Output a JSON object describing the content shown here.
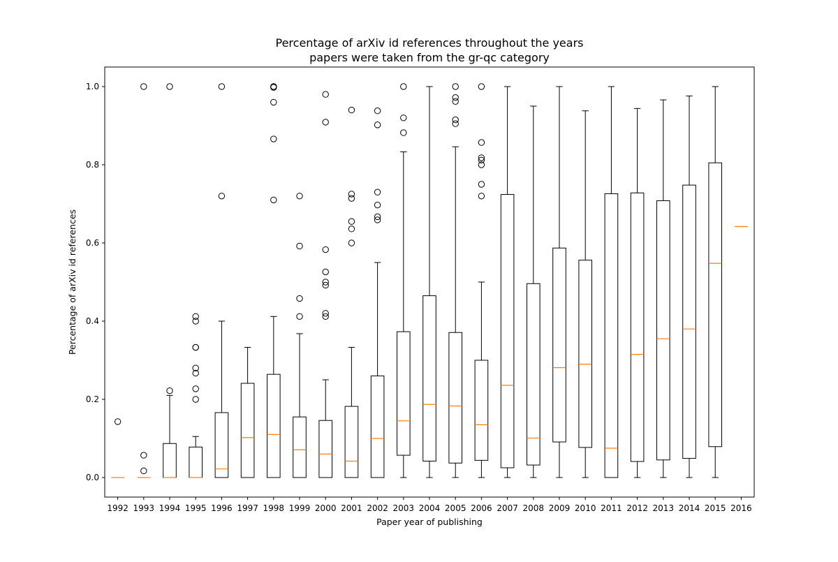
{
  "chart_data": {
    "type": "boxplot",
    "title": "Percentage of arXiv id references throughout the years",
    "subtitle": "papers were taken from the gr-qc category",
    "xlabel": "Paper year of publishing",
    "ylabel": "Percentage of arXiv id references",
    "ylim": [
      -0.05,
      1.05
    ],
    "yticks": [
      "0.0",
      "0.2",
      "0.4",
      "0.6",
      "0.8",
      "1.0"
    ],
    "grid": false,
    "legend": "none",
    "colors": {
      "box": "#000000",
      "median": "#ff7f0e",
      "flier": "#000000"
    },
    "categories": [
      "1992",
      "1993",
      "1994",
      "1995",
      "1996",
      "1997",
      "1998",
      "1999",
      "2000",
      "2001",
      "2002",
      "2003",
      "2004",
      "2005",
      "2006",
      "2007",
      "2008",
      "2009",
      "2010",
      "2011",
      "2012",
      "2013",
      "2014",
      "2015",
      "2016"
    ],
    "boxes": [
      {
        "whislo": 0.0,
        "q1": 0.0,
        "med": 0.0,
        "q3": 0.0,
        "whishi": 0.0,
        "fliers": [
          0.143
        ]
      },
      {
        "whislo": 0.0,
        "q1": 0.0,
        "med": 0.0,
        "q3": 0.0,
        "whishi": 0.0,
        "fliers": [
          1.0,
          0.057,
          0.017
        ]
      },
      {
        "whislo": 0.0,
        "q1": 0.0,
        "med": 0.0,
        "q3": 0.087,
        "whishi": 0.21,
        "fliers": [
          1.0,
          0.222
        ]
      },
      {
        "whislo": 0.0,
        "q1": 0.0,
        "med": 0.0,
        "q3": 0.078,
        "whishi": 0.105,
        "fliers": [
          0.412,
          0.4,
          0.333,
          0.333,
          0.28,
          0.267,
          0.227,
          0.2
        ]
      },
      {
        "whislo": 0.0,
        "q1": 0.0,
        "med": 0.022,
        "q3": 0.166,
        "whishi": 0.4,
        "fliers": [
          1.0,
          0.72
        ]
      },
      {
        "whislo": 0.0,
        "q1": 0.0,
        "med": 0.102,
        "q3": 0.241,
        "whishi": 0.333,
        "fliers": []
      },
      {
        "whislo": 0.0,
        "q1": 0.0,
        "med": 0.11,
        "q3": 0.264,
        "whishi": 0.412,
        "fliers": [
          1.0,
          1.0,
          0.998,
          0.96,
          0.866,
          0.71
        ]
      },
      {
        "whislo": 0.0,
        "q1": 0.0,
        "med": 0.071,
        "q3": 0.155,
        "whishi": 0.368,
        "fliers": [
          0.72,
          0.592,
          0.458,
          0.412
        ]
      },
      {
        "whislo": 0.0,
        "q1": 0.0,
        "med": 0.06,
        "q3": 0.146,
        "whishi": 0.25,
        "fliers": [
          0.98,
          0.909,
          0.583,
          0.526,
          0.5,
          0.492,
          0.42,
          0.412
        ]
      },
      {
        "whislo": 0.0,
        "q1": 0.0,
        "med": 0.042,
        "q3": 0.182,
        "whishi": 0.333,
        "fliers": [
          0.94,
          0.725,
          0.714,
          0.655,
          0.636,
          0.6
        ]
      },
      {
        "whislo": 0.0,
        "q1": 0.0,
        "med": 0.1,
        "q3": 0.26,
        "whishi": 0.55,
        "fliers": [
          0.938,
          0.902,
          0.73,
          0.697,
          0.667,
          0.659
        ]
      },
      {
        "whislo": 0.0,
        "q1": 0.057,
        "med": 0.145,
        "q3": 0.373,
        "whishi": 0.833,
        "fliers": [
          1.0,
          0.92,
          0.882
        ]
      },
      {
        "whislo": 0.0,
        "q1": 0.042,
        "med": 0.187,
        "q3": 0.465,
        "whishi": 1.0,
        "fliers": []
      },
      {
        "whislo": 0.0,
        "q1": 0.037,
        "med": 0.183,
        "q3": 0.371,
        "whishi": 0.846,
        "fliers": [
          1.0,
          0.972,
          0.962,
          0.915,
          0.905
        ]
      },
      {
        "whislo": 0.0,
        "q1": 0.044,
        "med": 0.135,
        "q3": 0.3,
        "whishi": 0.5,
        "fliers": [
          1.0,
          0.857,
          0.818,
          0.812,
          0.8,
          0.75,
          0.72
        ]
      },
      {
        "whislo": 0.0,
        "q1": 0.025,
        "med": 0.236,
        "q3": 0.724,
        "whishi": 1.0,
        "fliers": []
      },
      {
        "whislo": 0.0,
        "q1": 0.032,
        "med": 0.101,
        "q3": 0.496,
        "whishi": 0.95,
        "fliers": []
      },
      {
        "whislo": 0.0,
        "q1": 0.091,
        "med": 0.281,
        "q3": 0.587,
        "whishi": 1.0,
        "fliers": []
      },
      {
        "whislo": 0.0,
        "q1": 0.077,
        "med": 0.29,
        "q3": 0.556,
        "whishi": 0.938,
        "fliers": []
      },
      {
        "whislo": 0.0,
        "q1": 0.0,
        "med": 0.075,
        "q3": 0.726,
        "whishi": 1.0,
        "fliers": []
      },
      {
        "whislo": 0.0,
        "q1": 0.041,
        "med": 0.315,
        "q3": 0.728,
        "whishi": 0.944,
        "fliers": []
      },
      {
        "whislo": 0.0,
        "q1": 0.045,
        "med": 0.355,
        "q3": 0.708,
        "whishi": 0.966,
        "fliers": []
      },
      {
        "whislo": 0.0,
        "q1": 0.049,
        "med": 0.38,
        "q3": 0.748,
        "whishi": 0.976,
        "fliers": []
      },
      {
        "whislo": 0.0,
        "q1": 0.079,
        "med": 0.548,
        "q3": 0.805,
        "whishi": 1.0,
        "fliers": []
      },
      {
        "whislo": 0.642,
        "q1": 0.642,
        "med": 0.642,
        "q3": 0.642,
        "whishi": 0.642,
        "fliers": []
      }
    ]
  }
}
